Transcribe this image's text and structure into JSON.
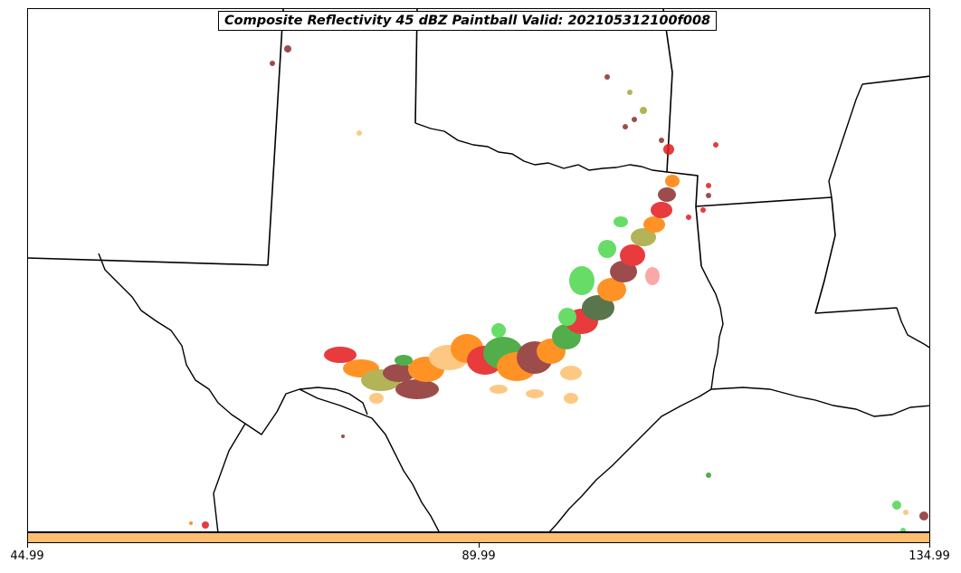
{
  "title": "Composite Reflectivity 45 dBZ Paintball Valid: 202105312100f008",
  "colorbar": {
    "color": "#fdbf6f",
    "ticks": [
      "44.99",
      "89.99",
      "134.99"
    ]
  },
  "colors": {
    "member_colors": [
      "#e31a1c",
      "#fb9a99",
      "#ff7f00",
      "#fdbf6f",
      "#33a02c",
      "#4dd64d",
      "#b2df8a",
      "#6a3d9a",
      "#8c2d2d",
      "#a6a63a",
      "#3d5e2c"
    ]
  }
}
